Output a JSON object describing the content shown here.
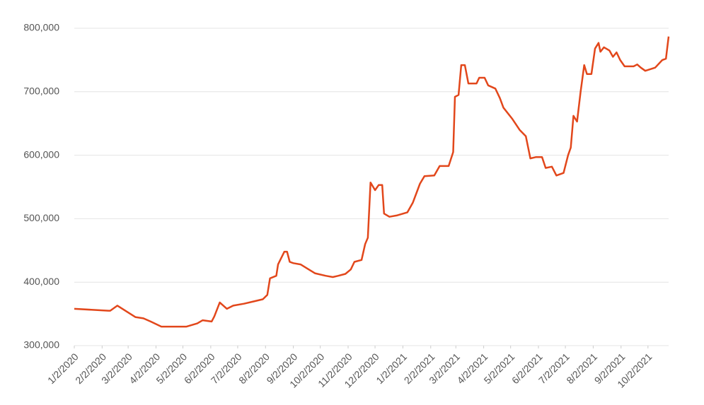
{
  "chart_data": {
    "type": "line",
    "x": [
      "1/2/2020",
      "2/9/2020",
      "2/11/2020",
      "2/19/2020",
      "3/10/2020",
      "3/19/2020",
      "3/27/2020",
      "4/8/2020",
      "5/6/2020",
      "5/18/2020",
      "5/24/2020",
      "6/3/2020",
      "6/6/2020",
      "6/12/2020",
      "6/20/2020",
      "6/27/2020",
      "7/9/2020",
      "7/21/2020",
      "7/30/2020",
      "8/4/2020",
      "8/7/2020",
      "8/14/2020",
      "8/16/2020",
      "8/23/2020",
      "8/26/2020",
      "8/29/2020",
      "9/2/2020",
      "9/10/2020",
      "9/18/2020",
      "9/26/2020",
      "10/8/2020",
      "10/16/2020",
      "10/22/2020",
      "10/30/2020",
      "11/5/2020",
      "11/9/2020",
      "11/17/2020",
      "11/21/2020",
      "11/24/2020",
      "11/27/2020",
      "12/2/2020",
      "12/6/2020",
      "12/10/2020",
      "12/12/2020",
      "12/18/2020",
      "12/26/2020",
      "1/7/2021",
      "1/13/2021",
      "1/21/2021",
      "1/26/2021",
      "2/6/2021",
      "2/12/2021",
      "2/22/2021",
      "2/27/2021",
      "3/1/2021",
      "3/5/2021",
      "3/8/2021",
      "3/12/2021",
      "3/16/2021",
      "3/25/2021",
      "3/28/2021",
      "4/3/2021",
      "4/7/2021",
      "4/15/2021",
      "4/20/2021",
      "4/24/2021",
      "5/4/2021",
      "5/12/2021",
      "5/19/2021",
      "5/24/2021",
      "5/30/2021",
      "6/6/2021",
      "6/10/2021",
      "6/17/2021",
      "6/22/2021",
      "6/30/2021",
      "7/5/2021",
      "7/8/2021",
      "7/11/2021",
      "7/15/2021",
      "7/19/2021",
      "7/23/2021",
      "7/26/2021",
      "7/31/2021",
      "8/4/2021",
      "8/8/2021",
      "8/10/2021",
      "8/14/2021",
      "8/20/2021",
      "8/24/2021",
      "8/28/2021",
      "9/1/2021",
      "9/6/2021",
      "9/16/2021",
      "9/20/2021",
      "9/24/2021",
      "9/29/2021",
      "10/10/2021",
      "10/18/2021",
      "10/22/2021",
      "10/25/2021"
    ],
    "series": [
      {
        "color": "#e2471b",
        "values": [
          358000,
          355000,
          355000,
          363000,
          345000,
          343000,
          338000,
          330000,
          330000,
          335000,
          340000,
          338000,
          346000,
          368000,
          358000,
          363000,
          366000,
          370000,
          373000,
          380000,
          406000,
          410000,
          428000,
          448000,
          448000,
          432000,
          430000,
          428000,
          421000,
          414000,
          410000,
          408000,
          410000,
          413000,
          420000,
          432000,
          435000,
          460000,
          470000,
          557000,
          545000,
          553000,
          553000,
          508000,
          503000,
          505000,
          510000,
          525000,
          555000,
          567000,
          568000,
          583000,
          583000,
          605000,
          692000,
          695000,
          742000,
          742000,
          713000,
          713000,
          722000,
          722000,
          710000,
          705000,
          690000,
          675000,
          657000,
          640000,
          630000,
          595000,
          597000,
          597000,
          580000,
          582000,
          568000,
          572000,
          600000,
          612000,
          662000,
          653000,
          700000,
          742000,
          728000,
          728000,
          768000,
          777000,
          763000,
          770000,
          765000,
          755000,
          762000,
          750000,
          740000,
          740000,
          743000,
          738000,
          733000,
          738000,
          750000,
          752000,
          787000
        ]
      }
    ],
    "xlim": [
      "1/2/2020",
      "10/25/2021"
    ],
    "xticks": [
      "1/2/2020",
      "2/2/2020",
      "3/2/2020",
      "4/2/2020",
      "5/2/2020",
      "6/2/2020",
      "7/2/2020",
      "8/2/2020",
      "9/2/2020",
      "10/2/2020",
      "11/2/2020",
      "12/2/2020",
      "1/2/2021",
      "2/2/2021",
      "3/2/2021",
      "4/2/2021",
      "5/2/2021",
      "6/2/2021",
      "7/2/2021",
      "8/2/2021",
      "9/2/2021",
      "10/2/2021"
    ],
    "ylim": [
      300000,
      800000
    ],
    "yticks": [
      {
        "value": 300000,
        "label": "300,000"
      },
      {
        "value": 400000,
        "label": "400,000"
      },
      {
        "value": 500000,
        "label": "500,000"
      },
      {
        "value": 600000,
        "label": "600,000"
      },
      {
        "value": 700000,
        "label": "700,000"
      },
      {
        "value": 800000,
        "label": "800,000"
      }
    ],
    "grid": true
  }
}
